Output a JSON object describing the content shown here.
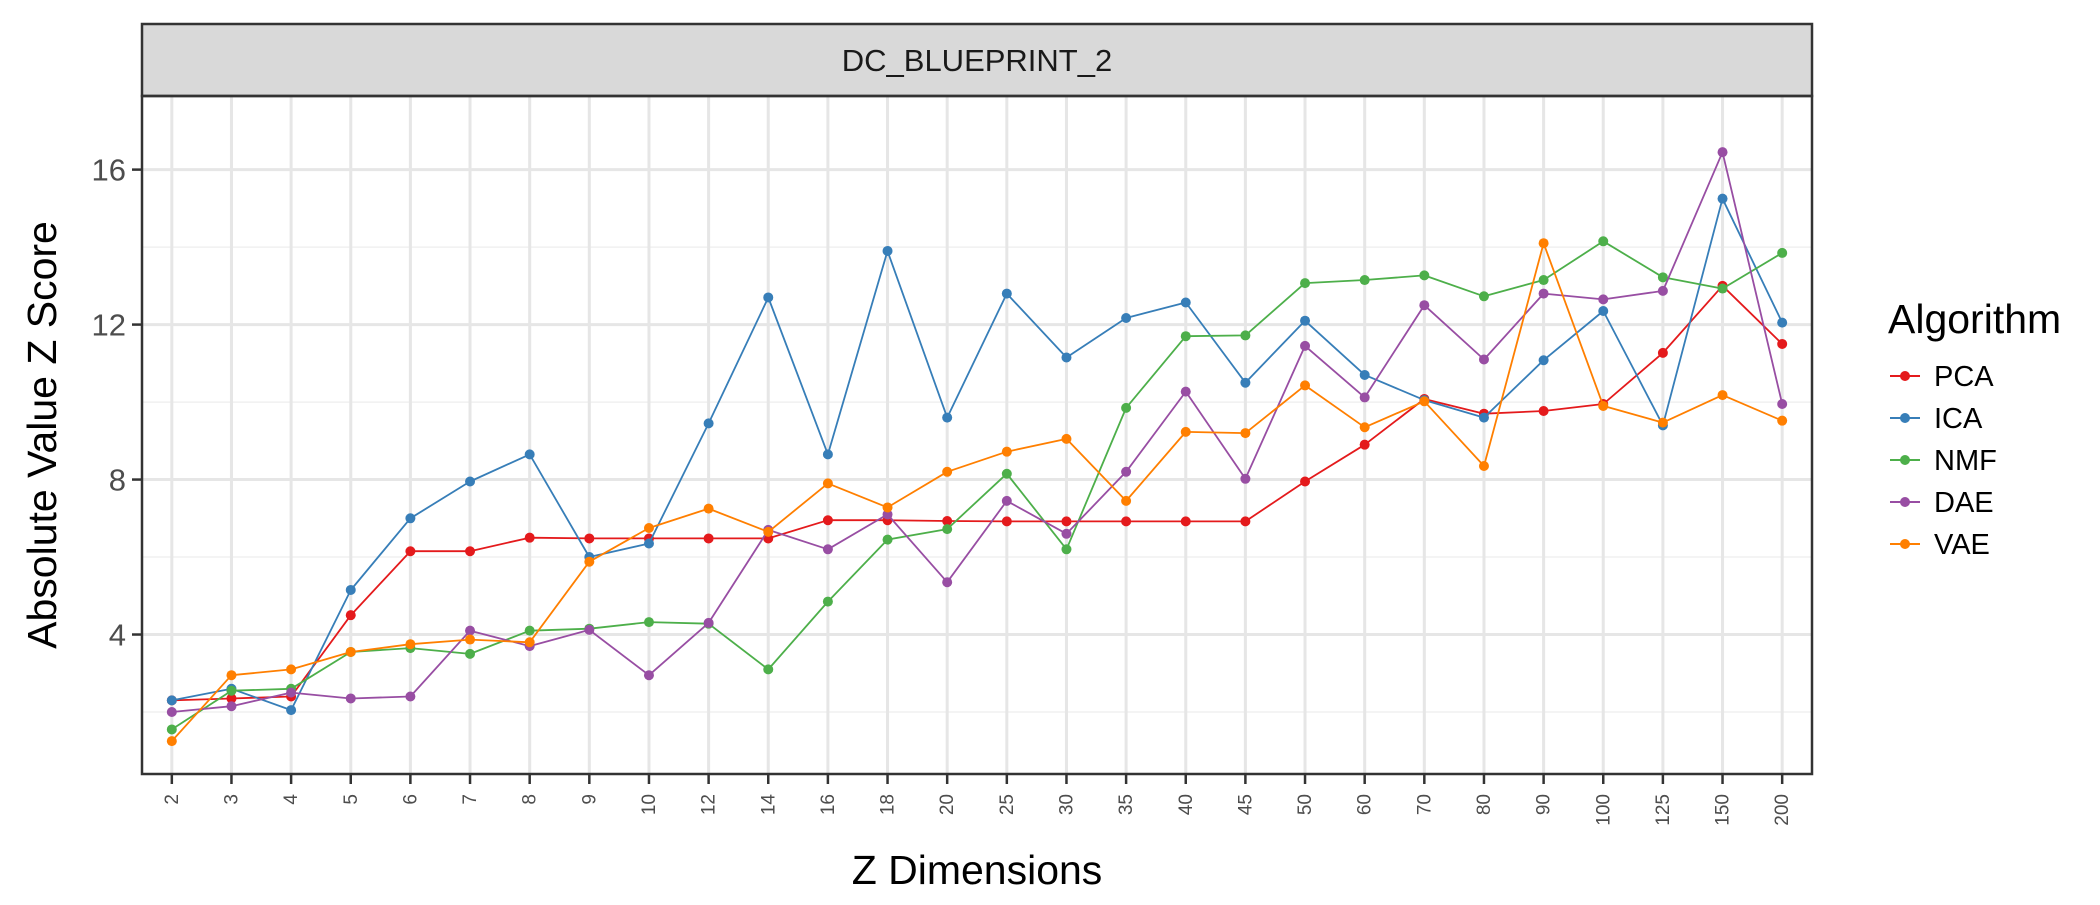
{
  "chart_data": {
    "type": "line",
    "facet_title": "DC_BLUEPRINT_2",
    "xlabel": "Z Dimensions",
    "ylabel": "Absolute Value Z Score",
    "categories": [
      "2",
      "3",
      "4",
      "5",
      "6",
      "7",
      "8",
      "9",
      "10",
      "12",
      "14",
      "16",
      "18",
      "20",
      "25",
      "30",
      "35",
      "40",
      "45",
      "50",
      "60",
      "70",
      "80",
      "90",
      "100",
      "125",
      "150",
      "200"
    ],
    "ylim": [
      0.4,
      17.9
    ],
    "yticks": [
      4,
      8,
      12,
      16
    ],
    "grid": true,
    "legend": {
      "title": "Algorithm",
      "position": "right"
    },
    "series": [
      {
        "name": "PCA",
        "color": "#e41a1c",
        "values": [
          2.3,
          2.35,
          2.4,
          4.5,
          6.15,
          6.15,
          6.5,
          6.48,
          6.48,
          6.48,
          6.48,
          6.95,
          6.95,
          6.93,
          6.92,
          6.92,
          6.92,
          6.92,
          6.92,
          7.95,
          8.9,
          10.08,
          9.7,
          9.77,
          9.95,
          11.27,
          13.0,
          11.5
        ]
      },
      {
        "name": "ICA",
        "color": "#377eb8",
        "values": [
          2.3,
          2.6,
          2.05,
          5.15,
          7.0,
          7.95,
          8.65,
          6.0,
          6.35,
          9.45,
          12.7,
          8.65,
          13.9,
          9.6,
          12.8,
          11.15,
          12.17,
          12.57,
          10.5,
          12.1,
          10.7,
          10.05,
          9.6,
          11.08,
          12.35,
          9.4,
          15.25,
          12.05
        ]
      },
      {
        "name": "NMF",
        "color": "#4daf4a",
        "values": [
          1.55,
          2.55,
          2.6,
          3.55,
          3.65,
          3.5,
          4.1,
          4.15,
          4.32,
          4.28,
          3.1,
          4.85,
          6.45,
          6.72,
          8.15,
          6.2,
          9.85,
          11.7,
          11.72,
          13.07,
          13.15,
          13.27,
          12.73,
          13.15,
          14.15,
          13.22,
          12.93,
          13.85
        ]
      },
      {
        "name": "DAE",
        "color": "#984ea3",
        "values": [
          2.0,
          2.15,
          2.5,
          2.35,
          2.4,
          4.1,
          3.7,
          4.12,
          2.95,
          4.3,
          6.7,
          6.2,
          7.1,
          5.35,
          7.45,
          6.6,
          8.2,
          10.27,
          8.02,
          11.45,
          10.12,
          12.5,
          11.1,
          12.8,
          12.65,
          12.87,
          16.45,
          9.95
        ]
      },
      {
        "name": "VAE",
        "color": "#ff7f00",
        "values": [
          1.25,
          2.95,
          3.1,
          3.55,
          3.75,
          3.87,
          3.8,
          5.88,
          6.75,
          7.25,
          6.65,
          7.9,
          7.28,
          8.2,
          8.72,
          9.05,
          7.45,
          9.23,
          9.2,
          10.43,
          9.35,
          10.02,
          8.35,
          14.1,
          9.9,
          9.47,
          10.18,
          9.52
        ]
      }
    ]
  }
}
